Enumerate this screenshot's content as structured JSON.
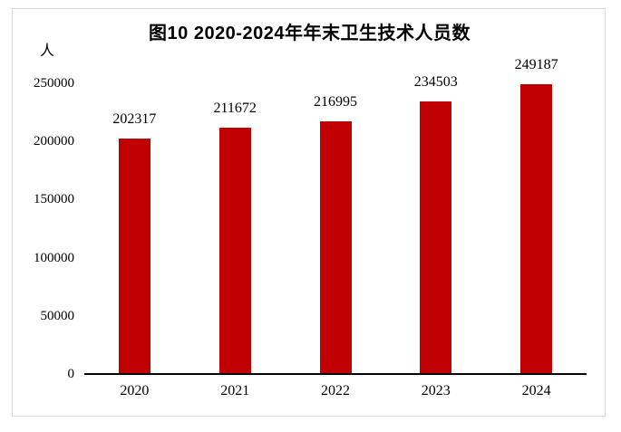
{
  "title": "图10  2020-2024年年末卫生技术人员数",
  "unit_label": "人",
  "colors": {
    "bar": "#c00000",
    "axis": "#000000",
    "text": "#000000",
    "border": "#d9d9d9",
    "background": "#ffffff"
  },
  "chart_data": {
    "type": "bar",
    "title": "图10  2020-2024年年末卫生技术人员数",
    "categories": [
      "2020",
      "2021",
      "2022",
      "2023",
      "2024"
    ],
    "values": [
      202317,
      211672,
      216995,
      234503,
      249187
    ],
    "xlabel": "",
    "ylabel": "人",
    "ylim": [
      0,
      250000
    ],
    "yticks": [
      0,
      50000,
      100000,
      150000,
      200000,
      250000
    ],
    "grid": false,
    "legend": "none",
    "data_labels": [
      202317,
      211672,
      216995,
      234503,
      249187
    ],
    "bar_color": "#c00000"
  }
}
